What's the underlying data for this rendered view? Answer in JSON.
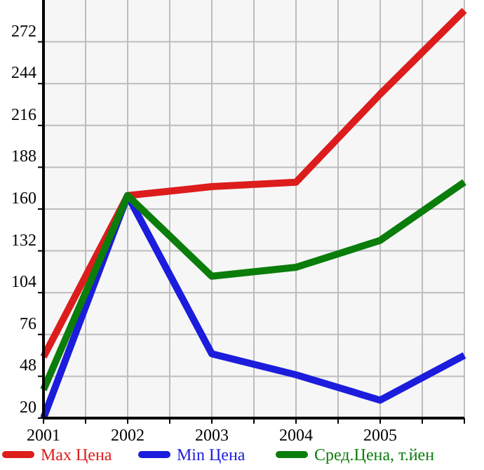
{
  "chart_data": {
    "type": "line",
    "x": [
      2001,
      2002,
      2003,
      2004,
      2005,
      2006
    ],
    "series": [
      {
        "name": "Max Цена",
        "color": "#dd1c1c",
        "values": [
          61,
          169,
          175,
          178,
          237,
          293
        ]
      },
      {
        "name": "Min Цена",
        "color": "#1c1cdd",
        "values": [
          20,
          169,
          63,
          49,
          32,
          62
        ]
      },
      {
        "name": "Сред.Цена, т.йен",
        "color": "#0a7d0a",
        "values": [
          39,
          169,
          115,
          121,
          139,
          178
        ]
      }
    ],
    "xlim": [
      2001,
      2006
    ],
    "xticks": [
      2001,
      {
        "value": 2001.5,
        "label": null
      },
      2002,
      {
        "value": 2002.5,
        "label": null
      },
      2003,
      {
        "value": 2003.5,
        "label": null
      },
      2004,
      {
        "value": 2004.5,
        "label": null
      },
      2005,
      {
        "value": 2005.5,
        "label": null
      },
      {
        "value": 2006,
        "label": null
      }
    ],
    "ylim": [
      20,
      300
    ],
    "yticks": [
      20,
      48,
      76,
      104,
      132,
      160,
      188,
      216,
      244,
      272
    ],
    "grid": true,
    "legend": "bottom",
    "marker": "none",
    "line_style": "solid"
  }
}
